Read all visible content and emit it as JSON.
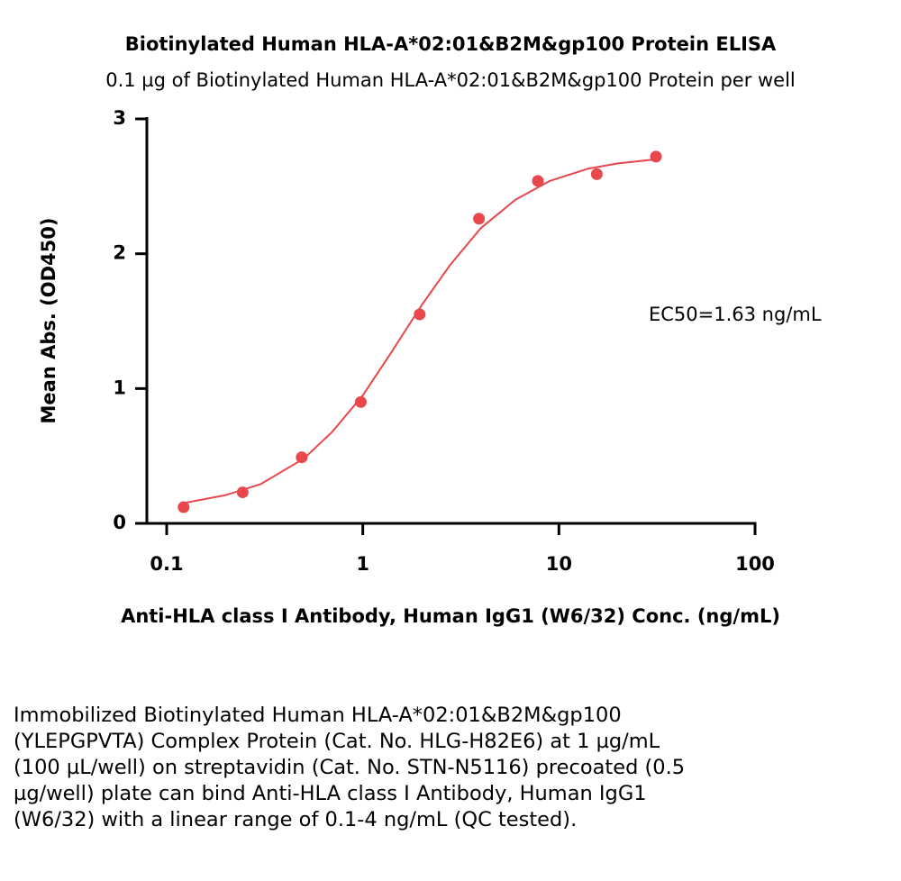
{
  "chart_data": {
    "type": "scatter",
    "title": "Biotinylated Human HLA-A*02:01&B2M&gp100 Protein ELISA",
    "subtitle": "0.1 µg of Biotinylated Human HLA-A*02:01&B2M&gp100 Protein per well",
    "xlabel": "Anti-HLA class I Antibody, Human IgG1 (W6/32) Conc. (ng/mL)",
    "ylabel": "Mean Abs. (OD450)",
    "annotation": "EC50=1.63 ng/mL",
    "xscale": "log",
    "xlim": [
      0.1,
      100
    ],
    "xticks": [
      0.1,
      1,
      10,
      100
    ],
    "ylim": [
      0,
      3
    ],
    "yticks": [
      0,
      1,
      2,
      3
    ],
    "series": [
      {
        "color": "#e8474c",
        "x": [
          0.122,
          0.244,
          0.488,
          0.977,
          1.95,
          3.91,
          7.81,
          15.6,
          31.25
        ],
        "values": [
          0.12,
          0.23,
          0.49,
          0.9,
          1.55,
          2.26,
          2.54,
          2.59,
          2.72
        ]
      }
    ],
    "fit": {
      "color": "#e8474c",
      "x": [
        0.122,
        0.2,
        0.3,
        0.5,
        0.7,
        1,
        1.4,
        2,
        2.8,
        4,
        6,
        9,
        14,
        20,
        31.25
      ],
      "values": [
        0.15,
        0.21,
        0.29,
        0.48,
        0.68,
        0.95,
        1.27,
        1.62,
        1.92,
        2.19,
        2.4,
        2.54,
        2.63,
        2.67,
        2.7
      ]
    }
  },
  "caption": "Immobilized Biotinylated Human HLA-A*02:01&B2M&gp100 (YLEPGPVTA) Complex Protein (Cat. No. HLG-H82E6) at 1 µg/mL (100 µL/well) on streptavidin (Cat. No. STN-N5116) precoated (0.5 µg/well) plate can bind Anti-HLA class I Antibody, Human IgG1 (W6/32) with a linear range of 0.1-4 ng/mL (QC tested)."
}
